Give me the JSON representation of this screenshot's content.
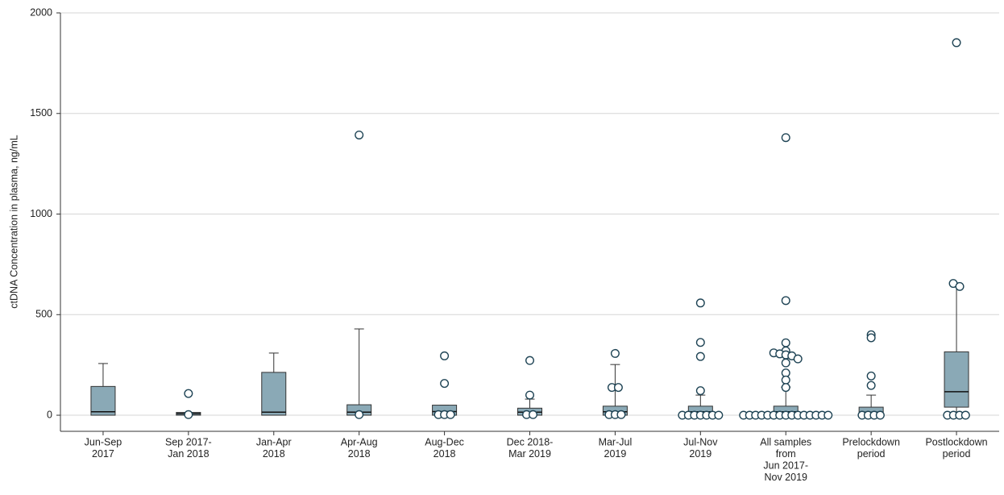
{
  "chart_data": {
    "type": "box",
    "y_label": "ctDNA Concentration in plasma, ng/mL",
    "categories": [
      [
        "Jun-Sep",
        "2017"
      ],
      [
        "Sep 2017-",
        "Jan 2018"
      ],
      [
        "Jan-Apr",
        "2018"
      ],
      [
        "Apr-Aug",
        "2018"
      ],
      [
        "Aug-Dec",
        "2018"
      ],
      [
        "Dec 2018-",
        "Mar 2019"
      ],
      [
        "Mar-Jul",
        "2019"
      ],
      [
        "Jul-Nov",
        "2019"
      ],
      [
        "All samples",
        "from",
        "Jun 2017-",
        "Nov 2019"
      ],
      [
        "Prelockdown",
        "period"
      ],
      [
        "Postlockdown",
        "period"
      ]
    ],
    "boxes": [
      {
        "low": 0,
        "q1": 0,
        "median": 17,
        "q3": 143,
        "high": 257,
        "outliers": []
      },
      {
        "low": 0,
        "q1": 0,
        "median": 7,
        "q3": 14,
        "high": 14,
        "outliers": [
          108,
          3
        ]
      },
      {
        "low": 0,
        "q1": 0,
        "median": 15,
        "q3": 213,
        "high": 309,
        "outliers": []
      },
      {
        "low": 0,
        "q1": 0,
        "median": 15,
        "q3": 52,
        "high": 429,
        "outliers": [
          1393,
          3
        ]
      },
      {
        "low": 0,
        "q1": 0,
        "median": 18,
        "q3": 50,
        "high": 50,
        "outliers": [
          295,
          158,
          3,
          3,
          3
        ]
      },
      {
        "low": 0,
        "q1": 0,
        "median": 15,
        "q3": 35,
        "high": 80,
        "outliers": [
          272,
          100,
          3,
          3
        ]
      },
      {
        "low": 0,
        "q1": 0,
        "median": 17,
        "q3": 45,
        "high": 252,
        "outliers": [
          307,
          138,
          138,
          3,
          3,
          3
        ]
      },
      {
        "low": 0,
        "q1": 0,
        "median": 17,
        "q3": 45,
        "high": 100,
        "outliers": [
          558,
          362,
          292,
          122,
          0,
          0,
          0,
          0,
          0,
          0,
          0
        ]
      },
      {
        "low": 0,
        "q1": 0,
        "median": 17,
        "q3": 45,
        "high": 140,
        "outliers": [
          1380,
          570,
          360,
          320,
          310,
          305,
          300,
          295,
          280,
          260,
          210,
          175,
          138,
          0,
          0,
          0,
          0,
          0,
          0,
          0,
          0,
          0,
          0,
          0,
          0,
          0,
          0,
          0
        ]
      },
      {
        "low": 0,
        "q1": 0,
        "median": 15,
        "q3": 40,
        "high": 100,
        "outliers": [
          400,
          385,
          195,
          148,
          0,
          0,
          0,
          0
        ]
      },
      {
        "low": 0,
        "q1": 40,
        "median": 117,
        "q3": 315,
        "high": 640,
        "outliers": [
          1852,
          655,
          640,
          0,
          0,
          0,
          0
        ]
      }
    ],
    "color": "#8aa9b6",
    "ylim": [
      -80,
      2000
    ],
    "yticks": [
      0,
      500,
      1000,
      1500,
      2000
    ],
    "grid": true
  }
}
